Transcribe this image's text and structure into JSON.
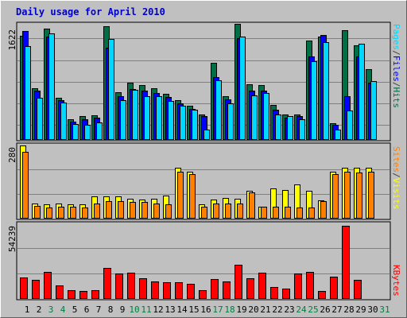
{
  "chart_data": {
    "type": "bar",
    "title": "Daily usage for April 2010",
    "categories": [
      "1",
      "2",
      "3",
      "4",
      "5",
      "6",
      "7",
      "8",
      "9",
      "10",
      "11",
      "12",
      "13",
      "14",
      "15",
      "16",
      "17",
      "18",
      "19",
      "20",
      "21",
      "22",
      "23",
      "24",
      "25",
      "26",
      "27",
      "28",
      "29",
      "30",
      "31"
    ],
    "weekend_days": [
      "3",
      "4",
      "10",
      "11",
      "17",
      "18",
      "24",
      "25",
      "31"
    ],
    "colors": {
      "title": "#0000cc",
      "weekday_label": "#000000",
      "weekend_label": "#007f3f",
      "hits": "#006f46",
      "files": "#0000ff",
      "pages": "#00d8ff",
      "visits": "#ffff00",
      "sites": "#ff8000",
      "kbytes": "#ff0000"
    },
    "panels": [
      {
        "id": "top",
        "ymax_label": "1622",
        "ymax": 1622,
        "legend": [
          "Pages",
          "/",
          "Files",
          "/",
          "Hits"
        ],
        "legend_colors": [
          "#00d8ff",
          "#404040",
          "#0000ff",
          "#404040",
          "#006f46"
        ],
        "series": [
          {
            "name": "Hits",
            "values": [
              1470,
              730,
              1570,
              590,
              290,
              330,
              350,
              1600,
              670,
              810,
              770,
              730,
              650,
              560,
              480,
              360,
              1090,
              620,
              1630,
              780,
              770,
              490,
              360,
              360,
              1400,
              1450,
              240,
              1540,
              1330,
              1000,
              0
            ]
          },
          {
            "name": "Files",
            "values": [
              1530,
              690,
              1450,
              560,
              260,
              290,
              310,
              1300,
              610,
              720,
              690,
              660,
              600,
              520,
              440,
              330,
              880,
              570,
              1430,
              690,
              690,
              420,
              310,
              330,
              1170,
              1480,
              210,
              620,
              1180,
              800,
              0
            ]
          },
          {
            "name": "Pages",
            "values": [
              1320,
              590,
              1500,
              530,
              220,
              210,
              250,
              1420,
              560,
              700,
              620,
              620,
              550,
              480,
              430,
              140,
              840,
              510,
              1450,
              630,
              660,
              360,
              330,
              290,
              1110,
              1380,
              150,
              410,
              1350,
              830,
              0
            ]
          }
        ]
      },
      {
        "id": "middle",
        "ymax_label": "280",
        "ymax": 280,
        "legend": [
          "Sites",
          "/",
          "Visits"
        ],
        "legend_colors": [
          "#ff8000",
          "#404040",
          "#ffff00"
        ],
        "series": [
          {
            "name": "Visits",
            "values": [
              285,
              58,
              55,
              58,
              55,
              55,
              88,
              88,
              88,
              78,
              75,
              78,
              90,
              198,
              185,
              55,
              75,
              80,
              78,
              108,
              48,
              118,
              112,
              133,
              110,
              70,
              185,
              200,
              198,
              198,
              0
            ]
          },
          {
            "name": "Sites",
            "values": [
              260,
              50,
              44,
              48,
              48,
              44,
              60,
              68,
              68,
              64,
              64,
              58,
              55,
              182,
              175,
              48,
              60,
              60,
              60,
              104,
              46,
              48,
              46,
              44,
              44,
              68,
              175,
              185,
              180,
              185,
              0
            ]
          }
        ]
      },
      {
        "id": "bottom",
        "ymax_label": "54239",
        "ymax": 54239,
        "legend": [
          "KBytes"
        ],
        "legend_colors": [
          "#ff0000"
        ],
        "series": [
          {
            "name": "KBytes",
            "values": [
              15750,
              14100,
              20200,
              9900,
              6200,
              5800,
              6200,
              23200,
              18800,
              19600,
              15100,
              12800,
              12300,
              12500,
              11300,
              6200,
              14600,
              12700,
              25300,
              15200,
              19300,
              8600,
              7800,
              18600,
              20100,
              5700,
              16800,
              54239,
              14200,
              0,
              0
            ]
          }
        ]
      }
    ]
  }
}
